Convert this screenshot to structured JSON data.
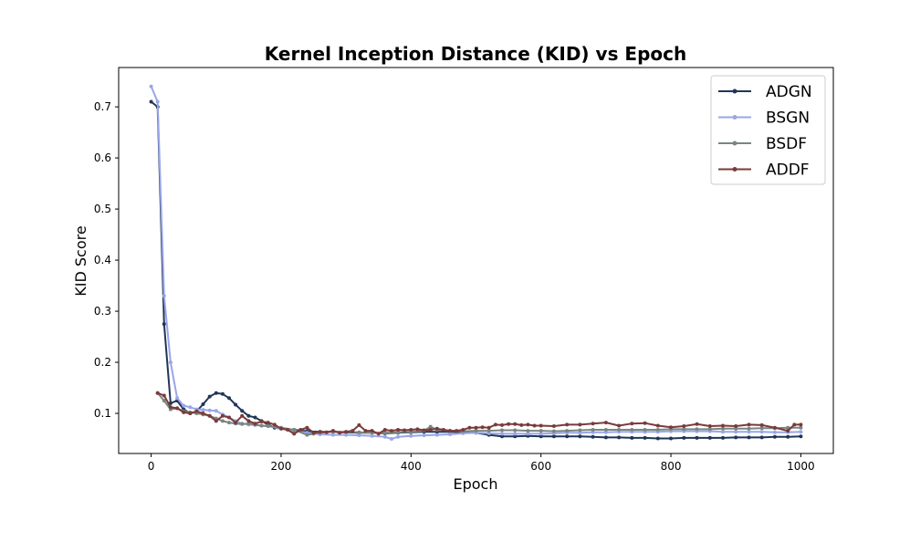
{
  "chart_data": {
    "type": "line",
    "title": "Kernel Inception Distance (KID) vs Epoch",
    "xlabel": "Epoch",
    "ylabel": "KID Score",
    "xlim": [
      -50,
      1050
    ],
    "ylim": [
      0.0215,
      0.777
    ],
    "xticks": [
      0,
      200,
      400,
      600,
      800,
      1000
    ],
    "yticks": [
      0.1,
      0.2,
      0.3,
      0.4,
      0.5,
      0.6,
      0.7
    ],
    "grid": false,
    "legend_position": "top-right",
    "series": [
      {
        "name": "ADGN",
        "color": "#1f3657",
        "points": [
          [
            0,
            0.71
          ],
          [
            10,
            0.7
          ],
          [
            20,
            0.275
          ],
          [
            30,
            0.12
          ],
          [
            40,
            0.125
          ],
          [
            50,
            0.108
          ],
          [
            60,
            0.1
          ],
          [
            70,
            0.104
          ],
          [
            80,
            0.118
          ],
          [
            90,
            0.133
          ],
          [
            100,
            0.14
          ],
          [
            110,
            0.138
          ],
          [
            120,
            0.13
          ],
          [
            130,
            0.117
          ],
          [
            140,
            0.105
          ],
          [
            150,
            0.095
          ],
          [
            160,
            0.092
          ],
          [
            170,
            0.085
          ],
          [
            180,
            0.078
          ],
          [
            190,
            0.072
          ],
          [
            200,
            0.07
          ],
          [
            220,
            0.068
          ],
          [
            240,
            0.065
          ],
          [
            260,
            0.064
          ],
          [
            280,
            0.064
          ],
          [
            300,
            0.063
          ],
          [
            320,
            0.062
          ],
          [
            340,
            0.062
          ],
          [
            360,
            0.061
          ],
          [
            380,
            0.062
          ],
          [
            400,
            0.063
          ],
          [
            420,
            0.064
          ],
          [
            440,
            0.064
          ],
          [
            460,
            0.064
          ],
          [
            480,
            0.063
          ],
          [
            500,
            0.062
          ],
          [
            520,
            0.058
          ],
          [
            540,
            0.055
          ],
          [
            560,
            0.055
          ],
          [
            580,
            0.056
          ],
          [
            600,
            0.055
          ],
          [
            620,
            0.055
          ],
          [
            640,
            0.055
          ],
          [
            660,
            0.055
          ],
          [
            680,
            0.054
          ],
          [
            700,
            0.053
          ],
          [
            720,
            0.053
          ],
          [
            740,
            0.052
          ],
          [
            760,
            0.052
          ],
          [
            780,
            0.051
          ],
          [
            800,
            0.051
          ],
          [
            820,
            0.052
          ],
          [
            840,
            0.052
          ],
          [
            860,
            0.052
          ],
          [
            880,
            0.052
          ],
          [
            900,
            0.053
          ],
          [
            920,
            0.053
          ],
          [
            940,
            0.053
          ],
          [
            960,
            0.054
          ],
          [
            980,
            0.054
          ],
          [
            1000,
            0.055
          ]
        ]
      },
      {
        "name": "BSGN",
        "color": "#9aa6e8",
        "points": [
          [
            0,
            0.74
          ],
          [
            10,
            0.71
          ],
          [
            20,
            0.33
          ],
          [
            30,
            0.2
          ],
          [
            40,
            0.13
          ],
          [
            50,
            0.115
          ],
          [
            60,
            0.112
          ],
          [
            70,
            0.108
          ],
          [
            80,
            0.107
          ],
          [
            90,
            0.106
          ],
          [
            100,
            0.105
          ],
          [
            110,
            0.098
          ],
          [
            120,
            0.092
          ],
          [
            130,
            0.085
          ],
          [
            140,
            0.08
          ],
          [
            150,
            0.078
          ],
          [
            160,
            0.077
          ],
          [
            170,
            0.076
          ],
          [
            180,
            0.075
          ],
          [
            200,
            0.07
          ],
          [
            220,
            0.066
          ],
          [
            240,
            0.062
          ],
          [
            260,
            0.059
          ],
          [
            280,
            0.058
          ],
          [
            300,
            0.058
          ],
          [
            320,
            0.057
          ],
          [
            340,
            0.056
          ],
          [
            360,
            0.054
          ],
          [
            370,
            0.05
          ],
          [
            380,
            0.054
          ],
          [
            400,
            0.056
          ],
          [
            420,
            0.057
          ],
          [
            440,
            0.058
          ],
          [
            460,
            0.059
          ],
          [
            480,
            0.061
          ],
          [
            500,
            0.062
          ],
          [
            520,
            0.061
          ],
          [
            540,
            0.06
          ],
          [
            560,
            0.06
          ],
          [
            580,
            0.06
          ],
          [
            600,
            0.06
          ],
          [
            620,
            0.061
          ],
          [
            640,
            0.062
          ],
          [
            660,
            0.062
          ],
          [
            680,
            0.063
          ],
          [
            700,
            0.063
          ],
          [
            720,
            0.064
          ],
          [
            740,
            0.064
          ],
          [
            760,
            0.064
          ],
          [
            780,
            0.064
          ],
          [
            800,
            0.065
          ],
          [
            820,
            0.065
          ],
          [
            840,
            0.065
          ],
          [
            860,
            0.065
          ],
          [
            880,
            0.064
          ],
          [
            900,
            0.064
          ],
          [
            920,
            0.064
          ],
          [
            940,
            0.064
          ],
          [
            960,
            0.063
          ],
          [
            980,
            0.063
          ],
          [
            1000,
            0.064
          ]
        ]
      },
      {
        "name": "BSDF",
        "color": "#7a8680",
        "points": [
          [
            10,
            0.14
          ],
          [
            20,
            0.125
          ],
          [
            30,
            0.108
          ],
          [
            40,
            0.11
          ],
          [
            50,
            0.104
          ],
          [
            60,
            0.102
          ],
          [
            70,
            0.1
          ],
          [
            80,
            0.098
          ],
          [
            90,
            0.095
          ],
          [
            100,
            0.09
          ],
          [
            110,
            0.085
          ],
          [
            120,
            0.082
          ],
          [
            130,
            0.08
          ],
          [
            140,
            0.079
          ],
          [
            150,
            0.08
          ],
          [
            160,
            0.078
          ],
          [
            170,
            0.076
          ],
          [
            180,
            0.075
          ],
          [
            200,
            0.072
          ],
          [
            220,
            0.068
          ],
          [
            240,
            0.058
          ],
          [
            250,
            0.06
          ],
          [
            260,
            0.062
          ],
          [
            280,
            0.064
          ],
          [
            300,
            0.064
          ],
          [
            320,
            0.063
          ],
          [
            340,
            0.062
          ],
          [
            360,
            0.062
          ],
          [
            380,
            0.063
          ],
          [
            400,
            0.064
          ],
          [
            420,
            0.066
          ],
          [
            430,
            0.074
          ],
          [
            440,
            0.068
          ],
          [
            460,
            0.066
          ],
          [
            480,
            0.065
          ],
          [
            500,
            0.066
          ],
          [
            520,
            0.066
          ],
          [
            540,
            0.067
          ],
          [
            560,
            0.067
          ],
          [
            580,
            0.066
          ],
          [
            600,
            0.066
          ],
          [
            620,
            0.065
          ],
          [
            640,
            0.066
          ],
          [
            660,
            0.067
          ],
          [
            680,
            0.068
          ],
          [
            700,
            0.068
          ],
          [
            720,
            0.068
          ],
          [
            740,
            0.068
          ],
          [
            760,
            0.068
          ],
          [
            780,
            0.068
          ],
          [
            800,
            0.069
          ],
          [
            820,
            0.069
          ],
          [
            840,
            0.069
          ],
          [
            860,
            0.069
          ],
          [
            880,
            0.07
          ],
          [
            900,
            0.07
          ],
          [
            920,
            0.07
          ],
          [
            940,
            0.071
          ],
          [
            960,
            0.071
          ],
          [
            980,
            0.072
          ],
          [
            1000,
            0.072
          ]
        ]
      },
      {
        "name": "ADDF",
        "color": "#7a3b3b",
        "points": [
          [
            10,
            0.14
          ],
          [
            20,
            0.135
          ],
          [
            30,
            0.112
          ],
          [
            40,
            0.11
          ],
          [
            50,
            0.102
          ],
          [
            60,
            0.1
          ],
          [
            70,
            0.104
          ],
          [
            80,
            0.1
          ],
          [
            90,
            0.095
          ],
          [
            100,
            0.085
          ],
          [
            110,
            0.095
          ],
          [
            120,
            0.092
          ],
          [
            130,
            0.082
          ],
          [
            140,
            0.095
          ],
          [
            150,
            0.085
          ],
          [
            160,
            0.08
          ],
          [
            170,
            0.084
          ],
          [
            180,
            0.082
          ],
          [
            190,
            0.078
          ],
          [
            200,
            0.07
          ],
          [
            210,
            0.068
          ],
          [
            220,
            0.06
          ],
          [
            230,
            0.068
          ],
          [
            240,
            0.072
          ],
          [
            250,
            0.062
          ],
          [
            260,
            0.064
          ],
          [
            270,
            0.063
          ],
          [
            280,
            0.066
          ],
          [
            290,
            0.062
          ],
          [
            300,
            0.064
          ],
          [
            310,
            0.066
          ],
          [
            320,
            0.077
          ],
          [
            330,
            0.066
          ],
          [
            340,
            0.066
          ],
          [
            350,
            0.06
          ],
          [
            360,
            0.068
          ],
          [
            370,
            0.066
          ],
          [
            380,
            0.068
          ],
          [
            390,
            0.067
          ],
          [
            400,
            0.068
          ],
          [
            410,
            0.069
          ],
          [
            420,
            0.067
          ],
          [
            430,
            0.068
          ],
          [
            440,
            0.07
          ],
          [
            450,
            0.068
          ],
          [
            460,
            0.066
          ],
          [
            470,
            0.066
          ],
          [
            480,
            0.068
          ],
          [
            490,
            0.072
          ],
          [
            500,
            0.072
          ],
          [
            510,
            0.073
          ],
          [
            520,
            0.072
          ],
          [
            530,
            0.078
          ],
          [
            540,
            0.077
          ],
          [
            550,
            0.079
          ],
          [
            560,
            0.079
          ],
          [
            570,
            0.077
          ],
          [
            580,
            0.078
          ],
          [
            590,
            0.076
          ],
          [
            600,
            0.076
          ],
          [
            620,
            0.075
          ],
          [
            640,
            0.078
          ],
          [
            660,
            0.078
          ],
          [
            680,
            0.08
          ],
          [
            700,
            0.082
          ],
          [
            720,
            0.076
          ],
          [
            740,
            0.08
          ],
          [
            760,
            0.081
          ],
          [
            780,
            0.076
          ],
          [
            800,
            0.073
          ],
          [
            820,
            0.075
          ],
          [
            840,
            0.079
          ],
          [
            860,
            0.075
          ],
          [
            880,
            0.076
          ],
          [
            900,
            0.075
          ],
          [
            920,
            0.078
          ],
          [
            940,
            0.077
          ],
          [
            960,
            0.072
          ],
          [
            980,
            0.066
          ],
          [
            990,
            0.078
          ],
          [
            1000,
            0.078
          ]
        ]
      }
    ]
  }
}
